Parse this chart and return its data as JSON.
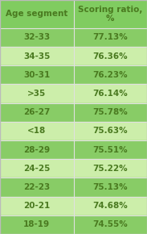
{
  "header_col1": "Age segment",
  "header_col2": "Scoring ratio,\n%",
  "rows": [
    [
      "32-33",
      "77.13%"
    ],
    [
      "34-35",
      "76.36%"
    ],
    [
      "30-31",
      "76.23%"
    ],
    [
      ">35",
      "76.14%"
    ],
    [
      "26-27",
      "75.78%"
    ],
    [
      "<18",
      "75.63%"
    ],
    [
      "28-29",
      "75.51%"
    ],
    [
      "24-25",
      "75.22%"
    ],
    [
      "22-23",
      "75.13%"
    ],
    [
      "20-21",
      "74.68%"
    ],
    [
      "18-19",
      "74.55%"
    ]
  ],
  "header_bg": "#80cc60",
  "row_bg_dark": "#88cc66",
  "row_bg_light": "#cceeaa",
  "text_color_dark": "#4a7a20",
  "text_color_light": "#4a7a20",
  "divider_color": "#e0e0e0",
  "col_split": 0.5,
  "fig_width": 1.83,
  "fig_height": 2.9,
  "header_fontsize": 7.5,
  "row_fontsize": 7.5
}
